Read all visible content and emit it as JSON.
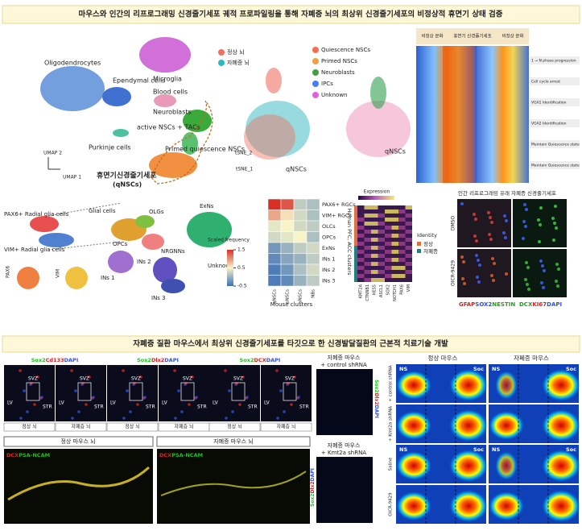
{
  "header": {
    "title": "마우스와 인간의 리프로그래밍 신경줄기세포 궤적 프로파일링을 통해 자폐증 뇌의 최상위 신경줄기세포의 비정상적 휴면기 상태 검증"
  },
  "mouse_umap": {
    "clusters": [
      "Oligodendrocytes",
      "Microglia",
      "Ependymal cells",
      "Blood cells",
      "Neuroblasts",
      "active NSCs + TACs",
      "Primed quiescence NSCs",
      "Purkinje cells"
    ],
    "highlight": "휴면기신경줄기세포",
    "highlight_sub": "(qNSCs)",
    "x_axis": "UMAP 1",
    "y_axis": "UMAP 2"
  },
  "tsne": {
    "groups": [
      "정상 뇌",
      "자폐증 뇌"
    ],
    "cell_types": [
      "Quiescence NSCs",
      "Primed NSCs",
      "Neuroblasts",
      "IPCs",
      "Unknown"
    ],
    "label": "qNSCs",
    "x_axis": "tSNE_1",
    "y_axis": "tSNE_2"
  },
  "pseudotime_heatmap": {
    "columns": [
      "비정상 분화",
      "휴면기 신경줄기세포",
      "비정상 분화"
    ],
    "annotations": [
      "1 → N phase progression",
      "Cell cycle arrest",
      "VGA1 Identification",
      "VGA2 Identification",
      "Maintain Quiescence state",
      "Maintain Quiescence state"
    ]
  },
  "human_umap": {
    "clusters": [
      "PAX6+ Radial glia cells",
      "VIM+ Radial glia cells",
      "Glial cells",
      "OLGs",
      "OPCs",
      "NRGNNs",
      "ExNs",
      "INs 1",
      "INs 2",
      "INs 3",
      "Unknown"
    ],
    "genes": [
      "PAX6",
      "VIM"
    ]
  },
  "mapping": {
    "rows": [
      "PAX6+ RGCs",
      "VIM+ RGCs",
      "OLCs",
      "OPCs",
      "ExNs",
      "INs 1",
      "INs 2",
      "INs 3"
    ],
    "columns": [
      "qNSCs",
      "pNSCs",
      "aNSCs",
      "NBs"
    ],
    "values": [
      [
        1.5,
        1.3,
        0.2,
        0.1
      ],
      [
        0.9,
        0.6,
        0.3,
        0.1
      ],
      [
        0.4,
        0.5,
        0.3,
        0.2
      ],
      [
        0.3,
        0.4,
        0.5,
        0.1
      ],
      [
        -0.2,
        0,
        0.2,
        0.3
      ],
      [
        -0.3,
        -0.1,
        0,
        0.2
      ],
      [
        -0.4,
        -0.2,
        0.1,
        0.3
      ],
      [
        -0.4,
        -0.3,
        0,
        0.2
      ]
    ],
    "x_axis": "Mouse clusters",
    "y_axis": "Human PFC, ACC clusters",
    "colorbar_title": "Scaled frequency",
    "colorbar_ticks": [
      1.5,
      0.5,
      -0.5
    ],
    "colorbar_lim": [
      -0.5,
      1.5
    ]
  },
  "expression": {
    "title": "Expression",
    "genes": [
      "KMT2A",
      "CTNNB1",
      "HES5",
      "ASCL1",
      "SOX2",
      "NOTCH1",
      "PAX6",
      "VIM"
    ],
    "identity_title": "Identity",
    "identity": [
      "정상",
      "자폐증"
    ]
  },
  "staining": {
    "title": "인간 리프로그래밍 유래 자폐증 신경줄기세포",
    "conditions": [
      "DMSO",
      "OICR-9429"
    ],
    "markers_left": [
      "GFAP",
      "SOX2",
      "NESTIN"
    ],
    "markers_right": [
      "DCX",
      "KI67",
      "DAPI"
    ]
  },
  "section2": {
    "title": "자폐증 질환 마우스에서 최상위 신경줄기세포를 타깃으로 한 신경발달질환의 근본적 치료기술 개발"
  },
  "stains": {
    "panels": [
      [
        "Sox2",
        "Cd133",
        "DAPI"
      ],
      [
        "Sox2",
        "Dlx2",
        "DAPI"
      ],
      [
        "Sox2",
        "DCX",
        "DAPI"
      ]
    ],
    "regions": [
      "LV",
      "SVZ",
      "STR"
    ],
    "groups": [
      "정상 뇌",
      "자폐증 뇌"
    ]
  },
  "ncam": {
    "groups": [
      "정상 마우스 뇌",
      "자폐증 마우스 뇌"
    ],
    "stain": [
      "DCX",
      "PSA-NCAM"
    ]
  },
  "shrna": {
    "top": "자폐증 마우스",
    "top_sub": "+ control shRNA",
    "bottom": "자폐증 마우스",
    "bottom_sub": "+ Kmt2a shRNA",
    "stain": [
      "Sox2",
      "Dlx2",
      "DAPI"
    ]
  },
  "behavior": {
    "columns": [
      "정상 마우스",
      "자폐증 마우스"
    ],
    "rows": [
      "+ control shRNA",
      "+ Kmt2a shRNA",
      "Saline",
      "OICR-9429"
    ],
    "zones": [
      "NS",
      "Soc"
    ]
  }
}
